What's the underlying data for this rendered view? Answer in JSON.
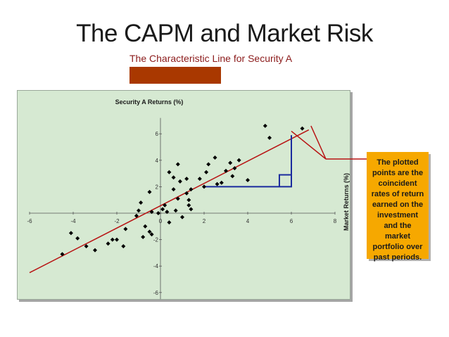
{
  "slide": {
    "title": "The CAPM and Market Risk",
    "subtitle": "The Characteristic Line for Security A",
    "callout": "The plotted points are the coincident rates of return earned on the investment and the market portfolio over past periods."
  },
  "colors": {
    "accent_box": "#a93800",
    "plot_background": "#d6e9d2",
    "fit_line": "#b81414",
    "triangle": "#1a2a9e",
    "callout_fill": "#f6a800",
    "points": "#000000"
  },
  "chart_data": {
    "type": "scatter",
    "title": "",
    "xlabel": "",
    "ylabel": "Security A Returns (%)",
    "y2label": "Market Returns (%)",
    "xlim": [
      -6,
      8
    ],
    "ylim": [
      -6.5,
      8
    ],
    "x_ticks": [
      -6,
      -4,
      -2,
      0,
      2,
      4,
      6,
      8
    ],
    "y_ticks": [
      -6,
      -4,
      -2,
      0,
      2,
      4,
      6
    ],
    "x_tick_labels": [
      "-6",
      "-4",
      "-2",
      "0",
      "2",
      "4",
      "6",
      "8"
    ],
    "y_tick_labels": [
      "-6",
      "-4",
      "-2",
      "0",
      "2",
      "4",
      "6"
    ],
    "grid": false,
    "series": [
      {
        "points": [
          [
            -4.5,
            -3.1
          ],
          [
            -4.1,
            -1.5
          ],
          [
            -3.8,
            -1.9
          ],
          [
            -3.4,
            -2.5
          ],
          [
            -3.0,
            -2.8
          ],
          [
            -2.4,
            -2.3
          ],
          [
            -2.2,
            -2.0
          ],
          [
            -2.0,
            -2.0
          ],
          [
            -1.7,
            -2.5
          ],
          [
            -1.6,
            -1.2
          ],
          [
            -1.1,
            -0.2
          ],
          [
            -1.0,
            0.2
          ],
          [
            -0.9,
            0.8
          ],
          [
            -0.8,
            -1.8
          ],
          [
            -0.7,
            -1.0
          ],
          [
            -0.5,
            -1.4
          ],
          [
            -0.4,
            -1.6
          ],
          [
            -0.4,
            0.1
          ],
          [
            -0.5,
            1.6
          ],
          [
            -0.1,
            0.0
          ],
          [
            0.1,
            0.3
          ],
          [
            0.2,
            0.6
          ],
          [
            0.3,
            0.1
          ],
          [
            0.4,
            -0.7
          ],
          [
            0.4,
            3.1
          ],
          [
            0.6,
            1.8
          ],
          [
            0.6,
            2.7
          ],
          [
            0.7,
            0.2
          ],
          [
            0.8,
            1.1
          ],
          [
            0.8,
            3.7
          ],
          [
            0.9,
            2.4
          ],
          [
            1.0,
            -0.3
          ],
          [
            1.2,
            1.5
          ],
          [
            1.2,
            2.6
          ],
          [
            1.3,
            0.6
          ],
          [
            1.3,
            1.0
          ],
          [
            1.4,
            0.3
          ],
          [
            1.4,
            1.8
          ],
          [
            1.8,
            2.6
          ],
          [
            2.0,
            2.0
          ],
          [
            2.1,
            3.1
          ],
          [
            2.2,
            3.7
          ],
          [
            2.5,
            4.2
          ],
          [
            2.6,
            2.2
          ],
          [
            2.8,
            2.3
          ],
          [
            3.0,
            3.2
          ],
          [
            3.2,
            3.8
          ],
          [
            3.3,
            2.8
          ],
          [
            3.4,
            3.4
          ],
          [
            3.6,
            4.0
          ],
          [
            4.0,
            2.5
          ],
          [
            4.8,
            6.6
          ],
          [
            5.0,
            5.7
          ],
          [
            6.5,
            6.4
          ]
        ]
      }
    ],
    "fit_line": {
      "x": [
        -6,
        6.8
      ],
      "y": [
        -4.5,
        6.3
      ]
    }
  }
}
